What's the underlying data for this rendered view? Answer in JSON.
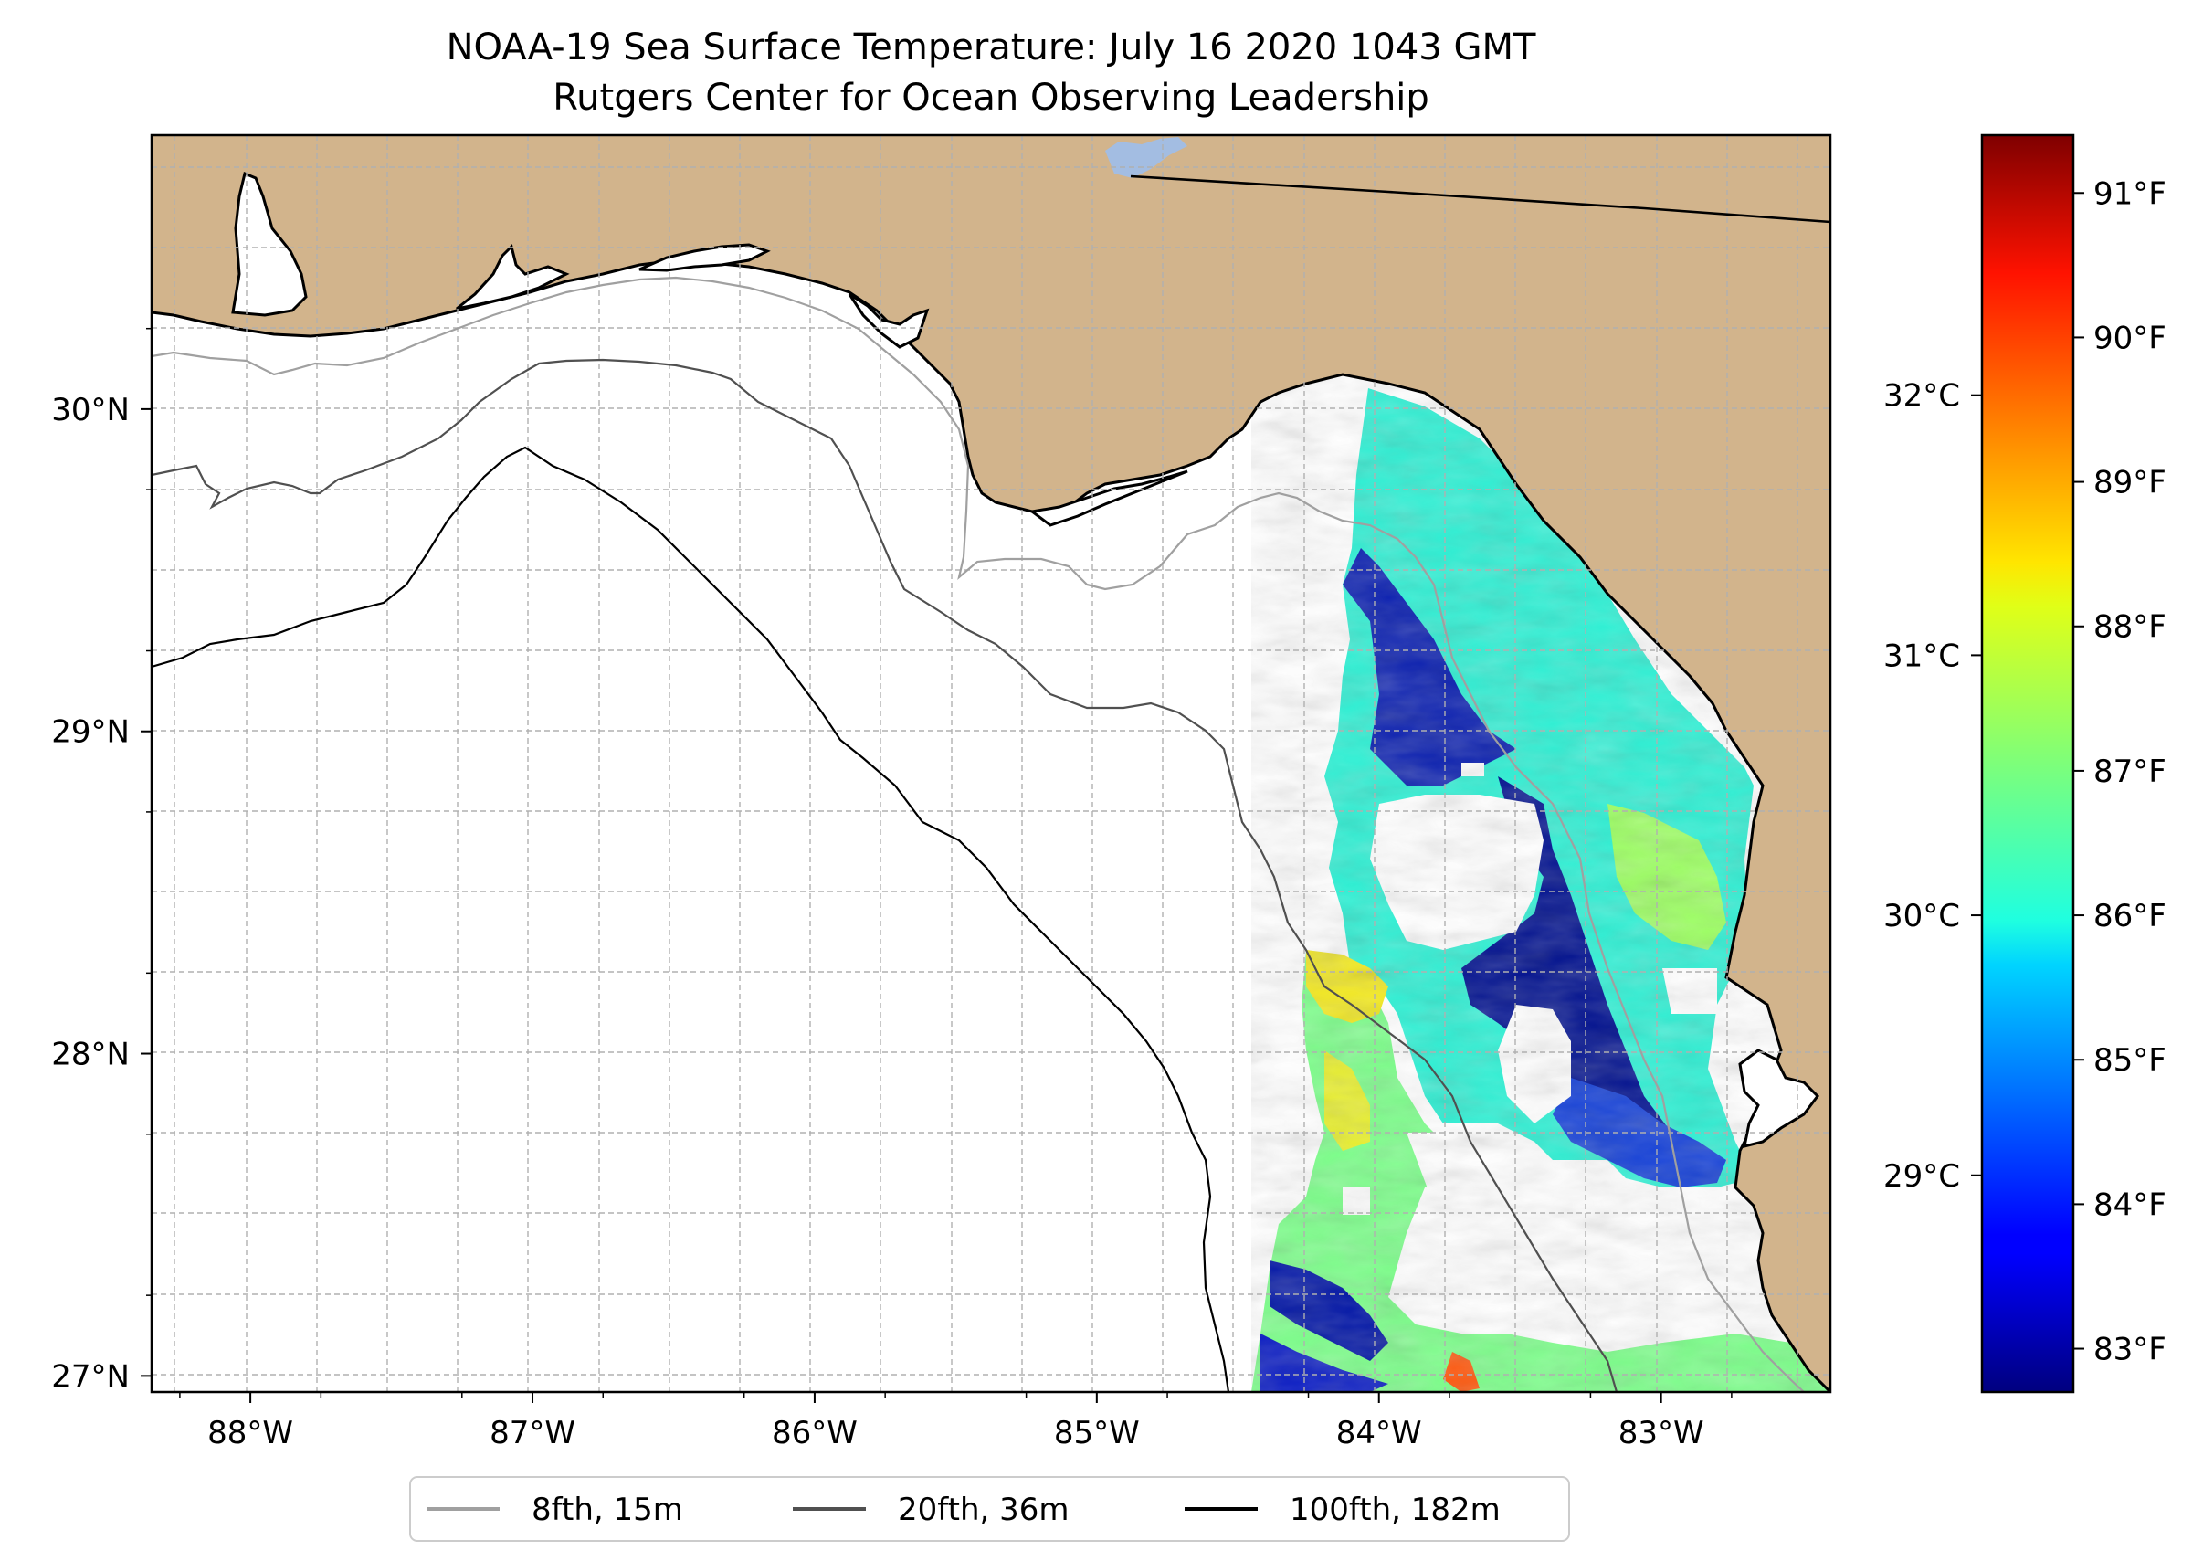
{
  "title": {
    "line1": "NOAA-19 Sea Surface Temperature: July 16 2020 1043 GMT",
    "line2": "Rutgers Center for Ocean Observing Leadership"
  },
  "colors": {
    "land": "#d2b48c",
    "lake": "#a3bde2",
    "grid": "#b0b0b0",
    "iso_8fth": "#a0a0a0",
    "iso_20fth": "#505050",
    "iso_100fth": "#000000"
  },
  "map_extent": {
    "lon_min": -88.35,
    "lon_max": -82.4,
    "lat_min": 26.95,
    "lat_max": 30.85
  },
  "x_ticks": [
    {
      "lon": -88,
      "label": "88°W"
    },
    {
      "lon": -87,
      "label": "87°W"
    },
    {
      "lon": -86,
      "label": "86°W"
    },
    {
      "lon": -85,
      "label": "85°W"
    },
    {
      "lon": -84,
      "label": "84°W"
    },
    {
      "lon": -83,
      "label": "83°W"
    }
  ],
  "y_ticks": [
    {
      "lat": 30,
      "label": "30°N"
    },
    {
      "lat": 29,
      "label": "29°N"
    },
    {
      "lat": 28,
      "label": "28°N"
    },
    {
      "lat": 27,
      "label": "27°N"
    }
  ],
  "colorbar": {
    "min_f": 82.7,
    "max_f": 91.4,
    "colormap": "jet",
    "f_ticks": [
      {
        "value": 83,
        "label": "83°F"
      },
      {
        "value": 84,
        "label": "84°F"
      },
      {
        "value": 85,
        "label": "85°F"
      },
      {
        "value": 86,
        "label": "86°F"
      },
      {
        "value": 87,
        "label": "87°F"
      },
      {
        "value": 88,
        "label": "88°F"
      },
      {
        "value": 89,
        "label": "89°F"
      },
      {
        "value": 90,
        "label": "90°F"
      },
      {
        "value": 91,
        "label": "91°F"
      }
    ],
    "c_ticks": [
      {
        "value": 29,
        "label": "29°C"
      },
      {
        "value": 30,
        "label": "30°C"
      },
      {
        "value": 31,
        "label": "31°C"
      },
      {
        "value": 32,
        "label": "32°C"
      }
    ]
  },
  "legend": {
    "placement": "bottom-center",
    "items": [
      {
        "label": "8fth, 15m",
        "color": "#a0a0a0"
      },
      {
        "label": "20fth, 36m",
        "color": "#505050"
      },
      {
        "label": "100fth, 182m",
        "color": "#000000"
      }
    ]
  }
}
